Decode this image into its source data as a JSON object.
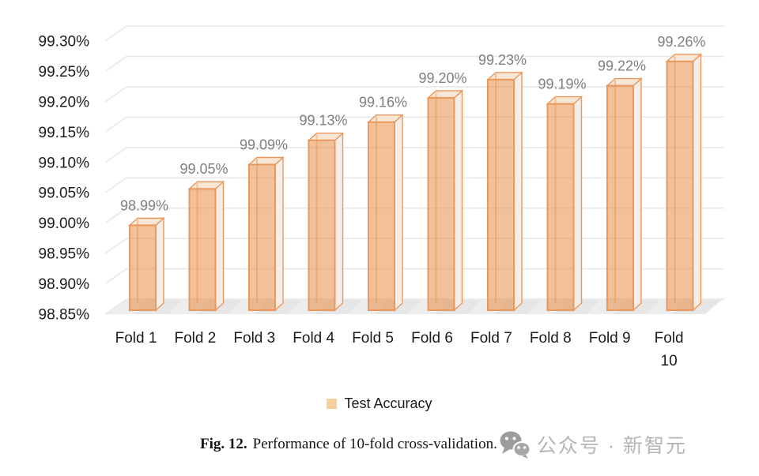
{
  "chart_data": {
    "type": "bar",
    "style": "3d-column",
    "title": "",
    "xlabel": "",
    "ylabel": "",
    "categories": [
      "Fold 1",
      "Fold 2",
      "Fold 3",
      "Fold 4",
      "Fold 5",
      "Fold 6",
      "Fold 7",
      "Fold 8",
      "Fold 9",
      "Fold 10"
    ],
    "values": [
      98.99,
      99.05,
      99.09,
      99.13,
      99.16,
      99.2,
      99.23,
      99.19,
      99.22,
      99.26
    ],
    "data_labels": [
      "98.99%",
      "99.05%",
      "99.09%",
      "99.13%",
      "99.16%",
      "99.20%",
      "99.23%",
      "99.19%",
      "99.22%",
      "99.26%"
    ],
    "series_name": "Test Accuracy",
    "ylim": [
      98.85,
      99.3
    ],
    "ytick_step": 0.05,
    "ytick_labels": [
      "98.85%",
      "98.90%",
      "98.95%",
      "99.00%",
      "99.05%",
      "99.10%",
      "99.15%",
      "99.20%",
      "99.25%",
      "99.30%"
    ],
    "grid": true,
    "legend_position": "bottom",
    "colors": {
      "bar_fill": "#E8883C",
      "bar_border": "#E9995E",
      "bar_top": "#F9E7D6",
      "bar_side": "#F6EDE8",
      "bar_shadow": "#E4E4E4",
      "data_label": "#7F7F7F",
      "axis_text": "#1C1C1C",
      "gridline": "#E8E8E8",
      "floor": "#EDEDED",
      "legend_swatch": "#F8CF9C"
    }
  },
  "caption": {
    "fig_label": "Fig. 12.",
    "text": "Performance of 10-fold cross-validation."
  },
  "watermark": {
    "icon": "wechat-icon",
    "text": "公众号 · 新智元",
    "color": "#B5B5B5",
    "icon_color": "#9C9C9C"
  }
}
